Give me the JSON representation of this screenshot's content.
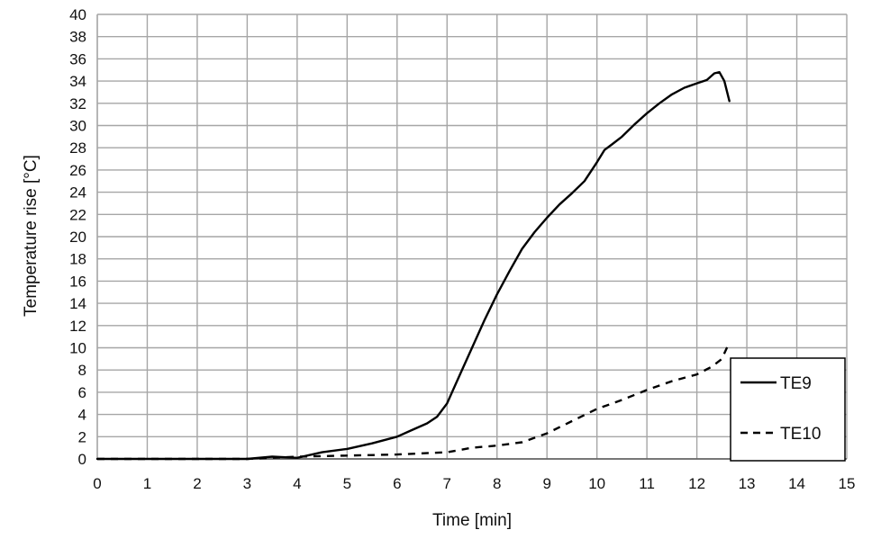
{
  "chart_data": {
    "type": "line",
    "xlabel": "Time [min]",
    "ylabel": "Temperature rise [°C]",
    "xlim": [
      0,
      15
    ],
    "ylim": [
      0,
      40
    ],
    "x_ticks": [
      0,
      1,
      2,
      3,
      4,
      5,
      6,
      7,
      8,
      9,
      10,
      11,
      12,
      13,
      14,
      15
    ],
    "y_ticks": [
      0,
      2,
      4,
      6,
      8,
      10,
      12,
      14,
      16,
      18,
      20,
      22,
      24,
      26,
      28,
      30,
      32,
      34,
      36,
      38,
      40
    ],
    "grid": true,
    "legend_position": "bottom-right",
    "series": [
      {
        "name": "TE9",
        "style": "solid",
        "color": "#000000",
        "points": [
          [
            0,
            0
          ],
          [
            1,
            0
          ],
          [
            2,
            0
          ],
          [
            3,
            0
          ],
          [
            3.5,
            0.2
          ],
          [
            4,
            0.1
          ],
          [
            4.5,
            0.6
          ],
          [
            5,
            0.9
          ],
          [
            5.5,
            1.4
          ],
          [
            6,
            2.0
          ],
          [
            6.3,
            2.6
          ],
          [
            6.6,
            3.2
          ],
          [
            6.8,
            3.8
          ],
          [
            7.0,
            5.0
          ],
          [
            7.25,
            7.5
          ],
          [
            7.5,
            10.0
          ],
          [
            7.75,
            12.5
          ],
          [
            8.0,
            14.8
          ],
          [
            8.25,
            16.9
          ],
          [
            8.5,
            18.9
          ],
          [
            8.75,
            20.4
          ],
          [
            9.0,
            21.7
          ],
          [
            9.25,
            22.9
          ],
          [
            9.5,
            23.9
          ],
          [
            9.75,
            25.0
          ],
          [
            10.0,
            26.7
          ],
          [
            10.15,
            27.8
          ],
          [
            10.3,
            28.3
          ],
          [
            10.5,
            29.0
          ],
          [
            10.75,
            30.1
          ],
          [
            11.0,
            31.1
          ],
          [
            11.25,
            32.0
          ],
          [
            11.5,
            32.8
          ],
          [
            11.75,
            33.4
          ],
          [
            12.0,
            33.8
          ],
          [
            12.2,
            34.1
          ],
          [
            12.35,
            34.7
          ],
          [
            12.45,
            34.8
          ],
          [
            12.55,
            34.0
          ],
          [
            12.65,
            32.2
          ]
        ]
      },
      {
        "name": "TE10",
        "style": "dashed",
        "color": "#000000",
        "points": [
          [
            0,
            0
          ],
          [
            1,
            0
          ],
          [
            2,
            0
          ],
          [
            3,
            0
          ],
          [
            4,
            0.2
          ],
          [
            5,
            0.3
          ],
          [
            6,
            0.4
          ],
          [
            6.5,
            0.5
          ],
          [
            7,
            0.6
          ],
          [
            7.5,
            1.0
          ],
          [
            8,
            1.2
          ],
          [
            8.5,
            1.5
          ],
          [
            9,
            2.3
          ],
          [
            9.5,
            3.4
          ],
          [
            10,
            4.5
          ],
          [
            10.5,
            5.3
          ],
          [
            11,
            6.2
          ],
          [
            11.5,
            7.0
          ],
          [
            12,
            7.6
          ],
          [
            12.3,
            8.3
          ],
          [
            12.5,
            9.0
          ],
          [
            12.65,
            10.5
          ]
        ]
      }
    ],
    "legend": {
      "entries": [
        "TE9",
        "TE10"
      ]
    }
  }
}
